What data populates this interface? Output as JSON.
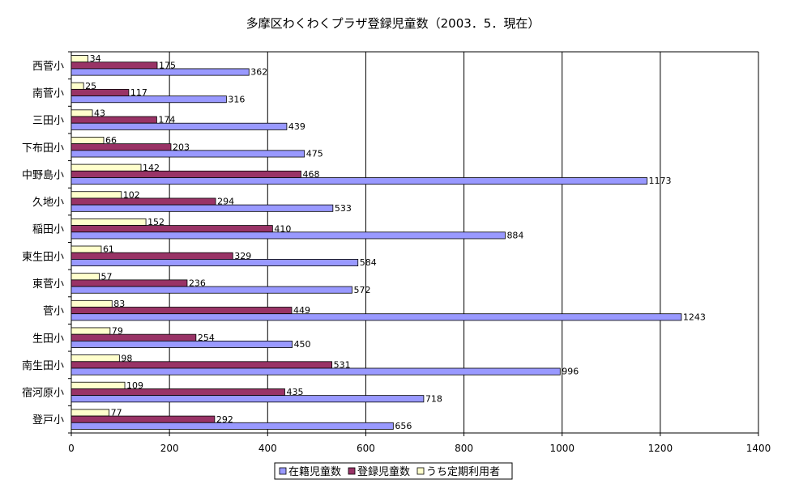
{
  "chart_data": {
    "type": "bar",
    "orientation": "horizontal",
    "title": "多摩区わくわくプラザ登録児童数（2003．5．現在）",
    "categories": [
      "西菅小",
      "南菅小",
      "三田小",
      "下布田小",
      "中野島小",
      "久地小",
      "稲田小",
      "東生田小",
      "東菅小",
      "菅小",
      "生田小",
      "南生田小",
      "宿河原小",
      "登戸小"
    ],
    "series": [
      {
        "name": "在籍児童数",
        "color": "#9999FF",
        "values": [
          362,
          316,
          439,
          475,
          1173,
          533,
          884,
          584,
          572,
          1243,
          450,
          996,
          718,
          656
        ]
      },
      {
        "name": "登録児童数",
        "color": "#993366",
        "values": [
          175,
          117,
          174,
          203,
          468,
          294,
          410,
          329,
          236,
          449,
          254,
          531,
          435,
          292
        ]
      },
      {
        "name": "うち定期利用者",
        "color": "#FFFFCC",
        "values": [
          34,
          25,
          43,
          66,
          142,
          102,
          152,
          61,
          57,
          83,
          79,
          98,
          109,
          77
        ]
      }
    ],
    "xlim": [
      0,
      1400
    ],
    "xticks": [
      "0",
      "200",
      "400",
      "600",
      "800",
      "1000",
      "1200",
      "1400"
    ],
    "grid": true,
    "legend_position": "bottom"
  }
}
